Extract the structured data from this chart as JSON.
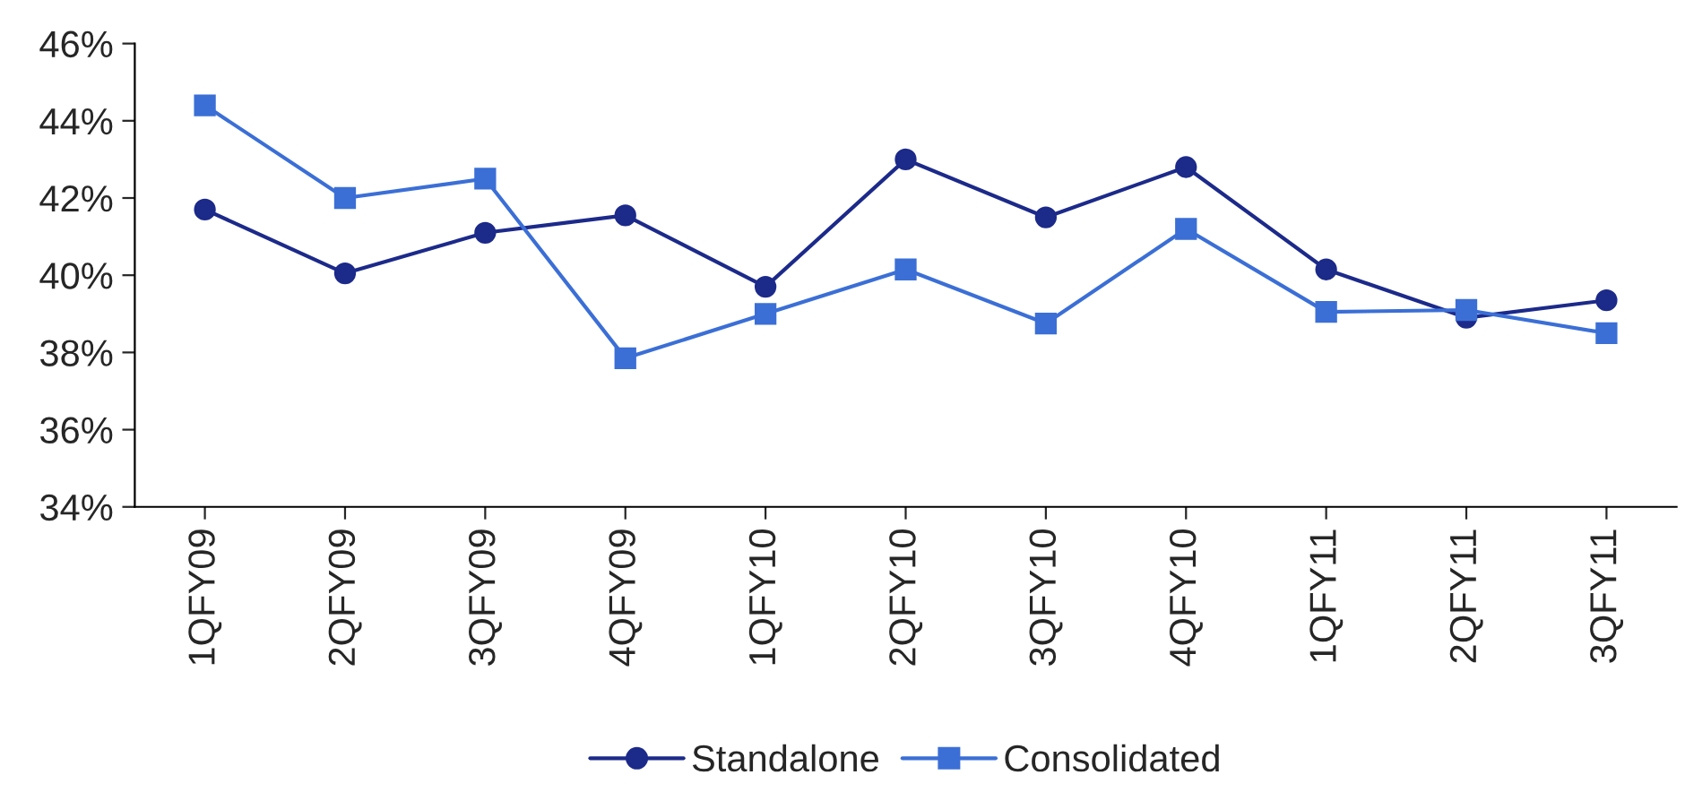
{
  "chart_data": {
    "type": "line",
    "categories": [
      "1QFY09",
      "2QFY09",
      "3QFY09",
      "4QFY09",
      "1QFY10",
      "2QFY10",
      "3QFY10",
      "4QFY10",
      "1QFY11",
      "2QFY11",
      "3QFY11"
    ],
    "series": [
      {
        "name": "Standalone",
        "color": "#1c2a8a",
        "marker": "circle",
        "values": [
          41.7,
          40.05,
          41.1,
          41.55,
          39.7,
          43.0,
          41.5,
          42.8,
          40.15,
          38.9,
          39.35
        ]
      },
      {
        "name": "Consolidated",
        "color": "#3b6fd6",
        "marker": "square",
        "values": [
          44.4,
          42.0,
          42.5,
          37.85,
          39.0,
          40.15,
          38.75,
          41.2,
          39.05,
          39.1,
          38.5
        ]
      }
    ],
    "ylim": [
      34,
      46
    ],
    "yticks": [
      {
        "value": 34,
        "label": "34%"
      },
      {
        "value": 36,
        "label": "36%"
      },
      {
        "value": 38,
        "label": "38%"
      },
      {
        "value": 40,
        "label": "40%"
      },
      {
        "value": 42,
        "label": "42%"
      },
      {
        "value": 44,
        "label": "44%"
      },
      {
        "value": 46,
        "label": "46%"
      }
    ],
    "grid": false,
    "legend": "bottom",
    "line_style": "solid"
  }
}
